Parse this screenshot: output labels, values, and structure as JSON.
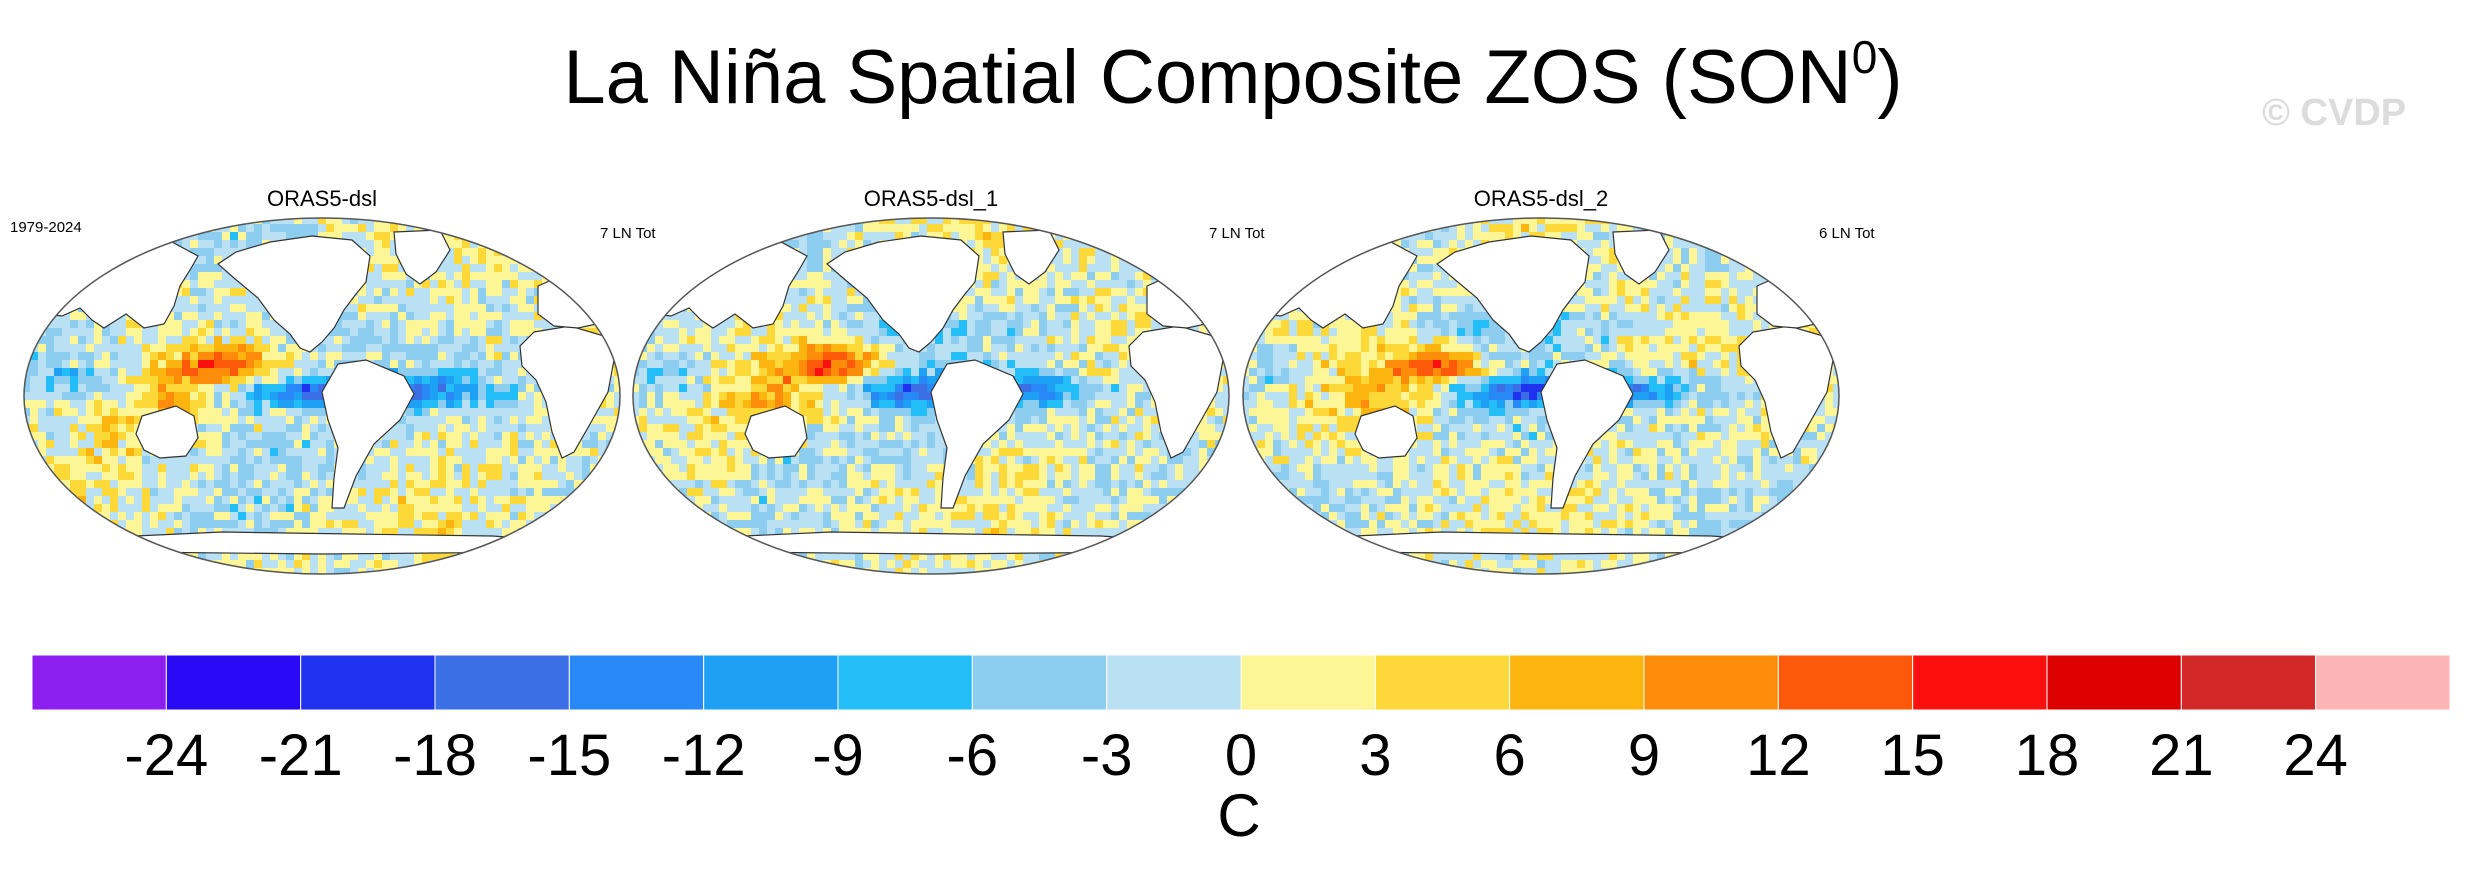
{
  "title_main": "La Niña Spatial Composite ZOS (SON",
  "title_sup": "0",
  "title_close": ")",
  "watermark": "© CVDP",
  "chart_data": {
    "type": "heatmap",
    "panels": [
      {
        "name": "ORAS5-dsl",
        "left_label": "1979-2024",
        "right_label": "7 LN Tot"
      },
      {
        "name": "ORAS5-dsl_1",
        "left_label": "",
        "right_label": "7 LN Tot"
      },
      {
        "name": "ORAS5-dsl_2",
        "left_label": "",
        "right_label": "6 LN Tot"
      }
    ],
    "colorbar": {
      "ticks": [
        "-24",
        "-21",
        "-18",
        "-15",
        "-12",
        "-9",
        "-6",
        "-3",
        "0",
        "3",
        "6",
        "9",
        "12",
        "15",
        "18",
        "21",
        "24"
      ],
      "colors": [
        "#8c1ef0",
        "#2a0af5",
        "#1e32f0",
        "#3c6ee6",
        "#2888f5",
        "#1ea0f5",
        "#23bef8",
        "#8ccdf0",
        "#b9e1f3",
        "#fcf696",
        "#fcd938",
        "#fcb40f",
        "#fc8c0a",
        "#fc5a0a",
        "#fc0f0f",
        "#dc0000",
        "#d22828",
        "#fcb4b4"
      ],
      "unit": "C"
    }
  }
}
